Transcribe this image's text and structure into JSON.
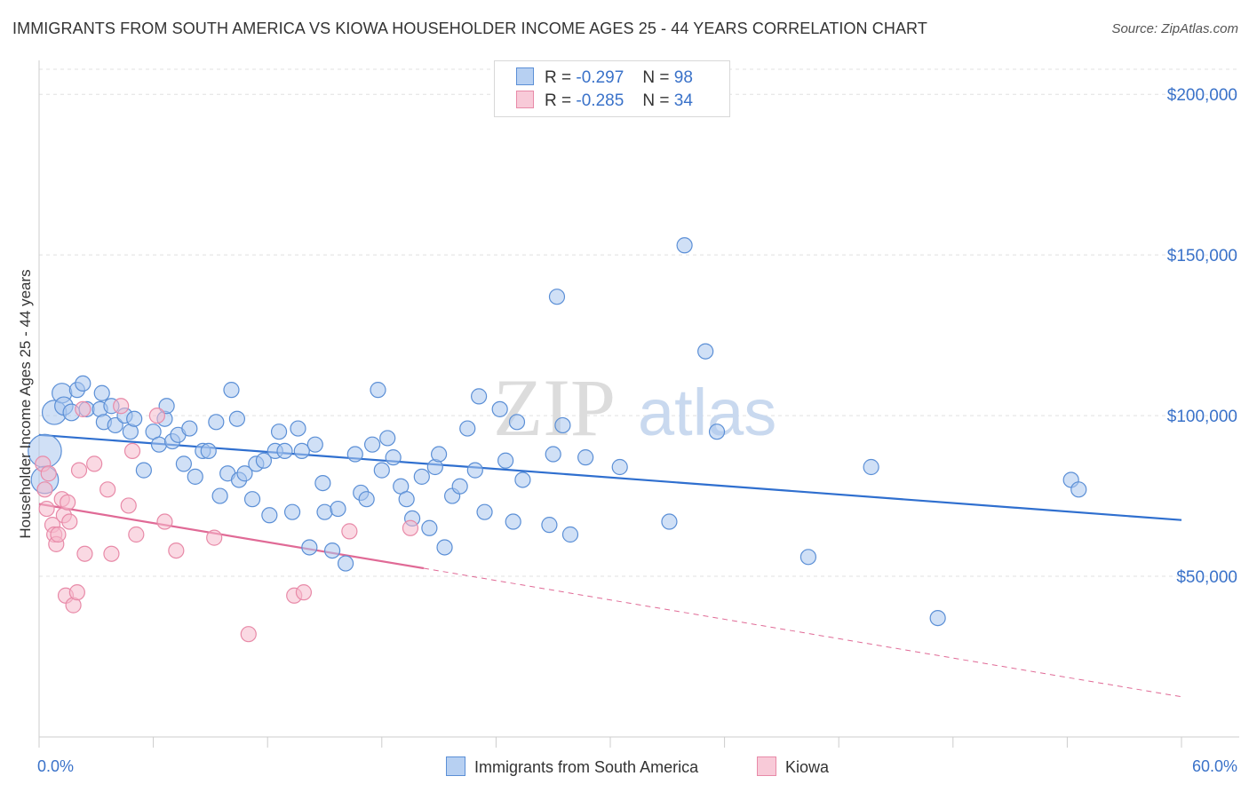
{
  "title": "IMMIGRANTS FROM SOUTH AMERICA VS KIOWA HOUSEHOLDER INCOME AGES 25 - 44 YEARS CORRELATION CHART",
  "source": "Source: ZipAtlas.com",
  "watermark": {
    "zip": "ZIP",
    "atlas": "atlas"
  },
  "legend": {
    "r_label": "R =",
    "n_label": "N =",
    "rows": [
      {
        "r": "-0.297",
        "n": "98"
      },
      {
        "r": "-0.285",
        "n": "34"
      }
    ]
  },
  "bottom_legend": [
    "Immigrants from South America",
    "Kiowa"
  ],
  "chart_data": {
    "type": "scatter",
    "title": "IMMIGRANTS FROM SOUTH AMERICA VS KIOWA HOUSEHOLDER INCOME AGES 25 - 44 YEARS CORRELATION CHART",
    "xlabel": "",
    "ylabel": "Householder Income Ages 25 - 44 years",
    "xlim": [
      0,
      60
    ],
    "ylim": [
      0,
      210000
    ],
    "x_tick_labels": [
      "0.0%",
      "60.0%"
    ],
    "y_ticks": [
      50000,
      100000,
      150000,
      200000
    ],
    "y_tick_labels": [
      "$50,000",
      "$100,000",
      "$150,000",
      "$200,000"
    ],
    "grid": true,
    "colors": {
      "blue_fill": "#a9c6ee",
      "blue_stroke": "#5b8fd6",
      "blue_line": "#2f6fcf",
      "pink_fill": "#f5b9cc",
      "pink_stroke": "#e88aa8",
      "pink_line": "#e06a96",
      "tick_label": "#3a72c9"
    },
    "series": [
      {
        "name": "Immigrants from South America",
        "r": -0.297,
        "n": 98,
        "trend": {
          "x": [
            0,
            60
          ],
          "y": [
            94000,
            67500
          ],
          "dashed_from": null
        },
        "points": [
          [
            0.3,
            89000,
            2.2
          ],
          [
            0.3,
            80000,
            1.8
          ],
          [
            0.8,
            101000,
            1.6
          ],
          [
            1.2,
            107000,
            1.3
          ],
          [
            1.3,
            103000,
            1.2
          ],
          [
            1.7,
            101000,
            1.1
          ],
          [
            2.0,
            108000,
            1
          ],
          [
            2.3,
            110000,
            1
          ],
          [
            2.5,
            102000,
            1
          ],
          [
            3.2,
            102000,
            1
          ],
          [
            3.3,
            107000,
            1
          ],
          [
            3.4,
            98000,
            1
          ],
          [
            3.8,
            103000,
            1
          ],
          [
            4.0,
            97000,
            1
          ],
          [
            4.5,
            100000,
            1
          ],
          [
            4.8,
            95000,
            1
          ],
          [
            5.0,
            99000,
            1
          ],
          [
            5.5,
            83000,
            1
          ],
          [
            6.0,
            95000,
            1
          ],
          [
            6.3,
            91000,
            1
          ],
          [
            6.6,
            99000,
            1
          ],
          [
            6.7,
            103000,
            1
          ],
          [
            7.0,
            92000,
            1
          ],
          [
            7.3,
            94000,
            1
          ],
          [
            7.6,
            85000,
            1
          ],
          [
            7.9,
            96000,
            1
          ],
          [
            8.2,
            81000,
            1
          ],
          [
            8.6,
            89000,
            1
          ],
          [
            8.9,
            89000,
            1
          ],
          [
            9.3,
            98000,
            1
          ],
          [
            9.5,
            75000,
            1
          ],
          [
            9.9,
            82000,
            1
          ],
          [
            10.1,
            108000,
            1
          ],
          [
            10.4,
            99000,
            1
          ],
          [
            10.5,
            80000,
            1
          ],
          [
            10.8,
            82000,
            1
          ],
          [
            11.2,
            74000,
            1
          ],
          [
            11.4,
            85000,
            1
          ],
          [
            11.8,
            86000,
            1
          ],
          [
            12.1,
            69000,
            1
          ],
          [
            12.4,
            89000,
            1
          ],
          [
            12.6,
            95000,
            1
          ],
          [
            12.9,
            89000,
            1
          ],
          [
            13.3,
            70000,
            1
          ],
          [
            13.6,
            96000,
            1
          ],
          [
            13.8,
            89000,
            1
          ],
          [
            14.2,
            59000,
            1
          ],
          [
            14.5,
            91000,
            1
          ],
          [
            14.9,
            79000,
            1
          ],
          [
            15.0,
            70000,
            1
          ],
          [
            15.4,
            58000,
            1
          ],
          [
            15.7,
            71000,
            1
          ],
          [
            16.1,
            54000,
            1
          ],
          [
            16.6,
            88000,
            1
          ],
          [
            16.9,
            76000,
            1
          ],
          [
            17.2,
            74000,
            1
          ],
          [
            17.5,
            91000,
            1
          ],
          [
            17.8,
            108000,
            1
          ],
          [
            18.0,
            83000,
            1
          ],
          [
            18.3,
            93000,
            1
          ],
          [
            18.6,
            87000,
            1
          ],
          [
            19.0,
            78000,
            1
          ],
          [
            19.3,
            74000,
            1
          ],
          [
            19.6,
            68000,
            1
          ],
          [
            20.1,
            81000,
            1
          ],
          [
            20.5,
            65000,
            1
          ],
          [
            20.8,
            84000,
            1
          ],
          [
            21.0,
            88000,
            1
          ],
          [
            21.3,
            59000,
            1
          ],
          [
            21.7,
            75000,
            1
          ],
          [
            22.1,
            78000,
            1
          ],
          [
            22.5,
            96000,
            1
          ],
          [
            22.9,
            83000,
            1
          ],
          [
            23.1,
            106000,
            1
          ],
          [
            23.4,
            70000,
            1
          ],
          [
            24.2,
            102000,
            1
          ],
          [
            24.5,
            86000,
            1
          ],
          [
            24.9,
            67000,
            1
          ],
          [
            25.1,
            98000,
            1
          ],
          [
            25.4,
            80000,
            1
          ],
          [
            26.8,
            66000,
            1
          ],
          [
            27.0,
            88000,
            1
          ],
          [
            27.2,
            137000,
            1
          ],
          [
            27.5,
            97000,
            1
          ],
          [
            27.9,
            63000,
            1
          ],
          [
            28.7,
            87000,
            1
          ],
          [
            30.5,
            84000,
            1
          ],
          [
            33.1,
            67000,
            1
          ],
          [
            33.9,
            153000,
            1
          ],
          [
            35.0,
            120000,
            1
          ],
          [
            35.6,
            95000,
            1
          ],
          [
            40.4,
            56000,
            1
          ],
          [
            43.7,
            84000,
            1
          ],
          [
            47.2,
            37000,
            1
          ],
          [
            54.2,
            80000,
            1
          ],
          [
            54.6,
            77000,
            1
          ]
        ]
      },
      {
        "name": "Kiowa",
        "r": -0.285,
        "n": 34,
        "trend": {
          "x": [
            0,
            20.2,
            60
          ],
          "y": [
            72500,
            52500,
            12500
          ],
          "dashed_from": 20.2
        },
        "points": [
          [
            0.2,
            85000,
            1
          ],
          [
            0.3,
            77000,
            1
          ],
          [
            0.4,
            71000,
            1
          ],
          [
            0.5,
            82000,
            1
          ],
          [
            0.7,
            66000,
            1
          ],
          [
            0.8,
            63000,
            1
          ],
          [
            0.9,
            60000,
            1
          ],
          [
            1.0,
            63000,
            1
          ],
          [
            1.2,
            74000,
            1
          ],
          [
            1.3,
            69000,
            1
          ],
          [
            1.4,
            44000,
            1
          ],
          [
            1.5,
            73000,
            1
          ],
          [
            1.6,
            67000,
            1
          ],
          [
            1.8,
            41000,
            1
          ],
          [
            2.0,
            45000,
            1
          ],
          [
            2.1,
            83000,
            1
          ],
          [
            2.3,
            102000,
            1
          ],
          [
            2.4,
            57000,
            1
          ],
          [
            2.9,
            85000,
            1
          ],
          [
            3.6,
            77000,
            1
          ],
          [
            3.8,
            57000,
            1
          ],
          [
            4.3,
            103000,
            1
          ],
          [
            4.7,
            72000,
            1
          ],
          [
            4.9,
            89000,
            1
          ],
          [
            5.1,
            63000,
            1
          ],
          [
            6.2,
            100000,
            1
          ],
          [
            6.6,
            67000,
            1
          ],
          [
            7.2,
            58000,
            1
          ],
          [
            9.2,
            62000,
            1
          ],
          [
            11.0,
            32000,
            1
          ],
          [
            13.4,
            44000,
            1
          ],
          [
            13.9,
            45000,
            1
          ],
          [
            16.3,
            64000,
            1
          ],
          [
            19.5,
            65000,
            1
          ]
        ]
      }
    ]
  }
}
